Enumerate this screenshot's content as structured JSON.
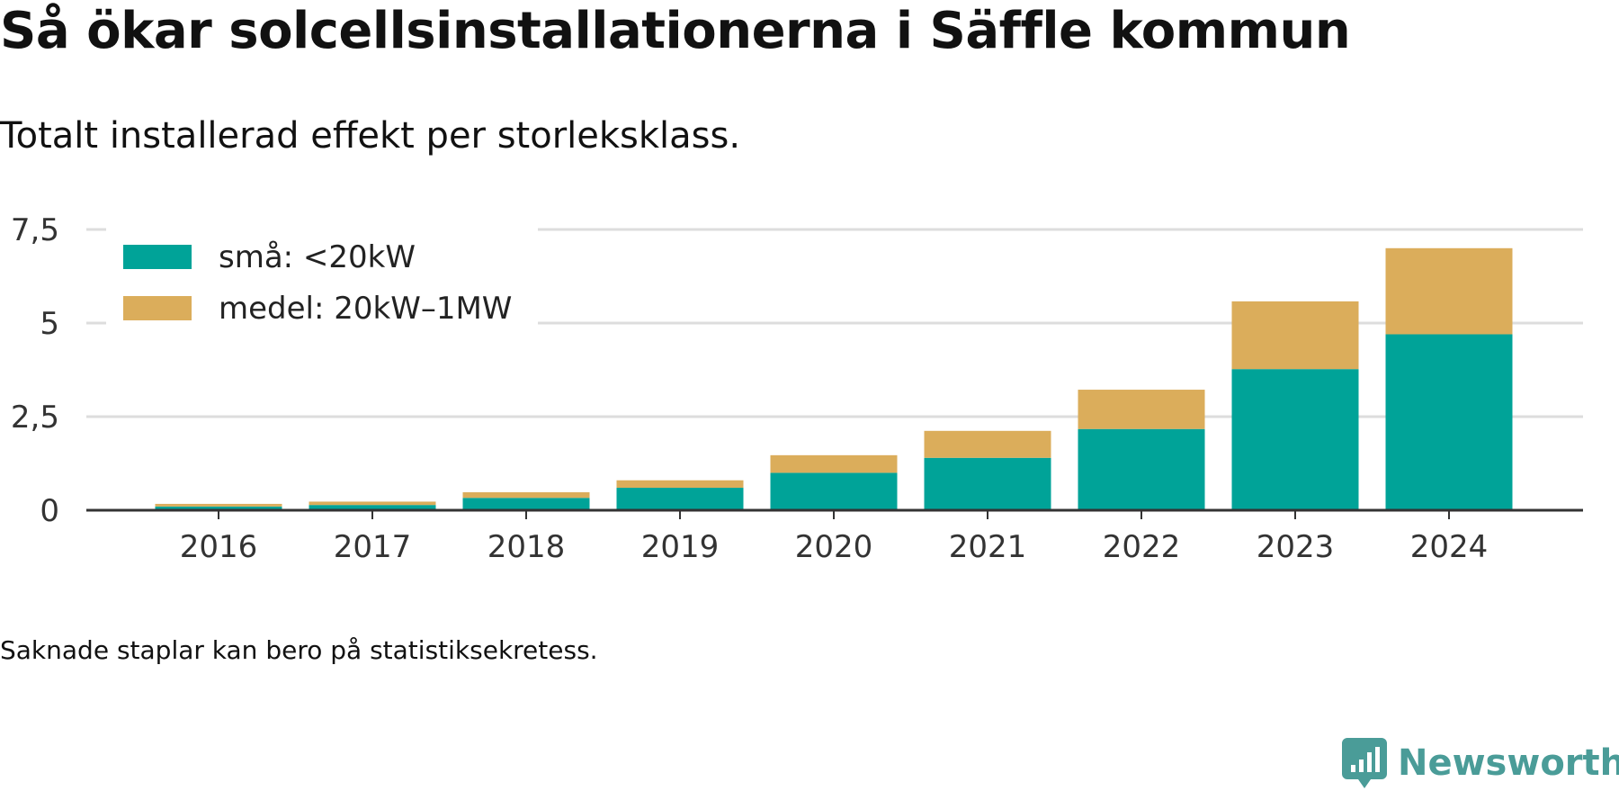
{
  "title": "Så ökar solcellsinstallationerna i Säffle kommun",
  "subtitle": "Totalt installerad effekt per storleksklass.",
  "footnote": "Saknade staplar kan bero på statistiksekretess.",
  "brand": {
    "name": "Newsworthy",
    "icon": "newsworthy-logo-icon",
    "color": "#4a9c98"
  },
  "chart_data": {
    "type": "bar",
    "stacked": true,
    "categories": [
      "2016",
      "2017",
      "2018",
      "2019",
      "2020",
      "2021",
      "2022",
      "2023",
      "2024"
    ],
    "series": [
      {
        "name": "små: <20kW",
        "color": "#00a398",
        "values": [
          0.1,
          0.14,
          0.33,
          0.6,
          1.0,
          1.4,
          2.17,
          3.77,
          4.7
        ]
      },
      {
        "name": "medel: 20kW–1MW",
        "color": "#dbad5b",
        "values": [
          0.07,
          0.09,
          0.15,
          0.2,
          0.47,
          0.72,
          1.05,
          1.81,
          2.3
        ]
      }
    ],
    "yticks": [
      0,
      2.5,
      5,
      7.5
    ],
    "ytick_labels": [
      "0",
      "2,5",
      "5",
      "7,5"
    ],
    "ylim": [
      0,
      7.5
    ],
    "grid": true,
    "legend_position": "top-left",
    "xlabel": "",
    "ylabel": ""
  }
}
